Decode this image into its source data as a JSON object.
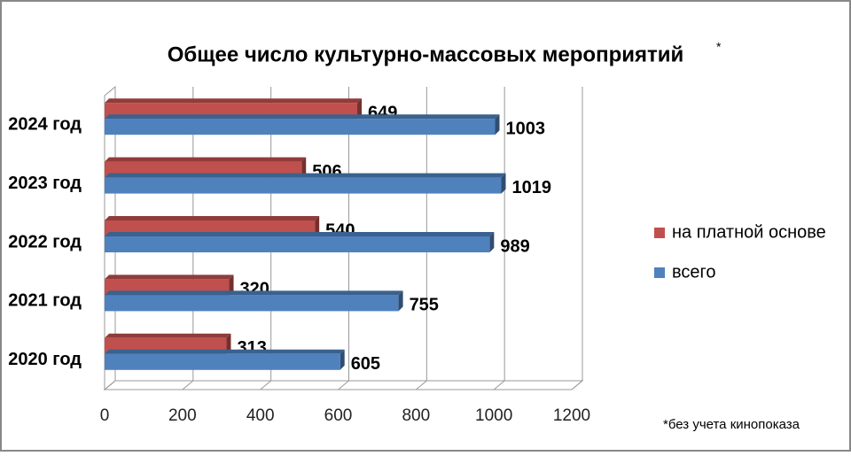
{
  "chart_data": {
    "type": "bar",
    "orientation": "horizontal",
    "title": "Общее число культурно-массовых  мероприятий",
    "title_mark": "*",
    "footnote": "*без учета кинопоказа",
    "categories": [
      "2024 год",
      "2023 год",
      "2022 год",
      "2021 год",
      "2020 год"
    ],
    "series": [
      {
        "name": "на платной основе",
        "color": "#c0504d",
        "values": [
          649,
          506,
          540,
          320,
          313
        ]
      },
      {
        "name": "всего",
        "color": "#4f81bd",
        "values": [
          1003,
          1019,
          989,
          755,
          605
        ]
      }
    ],
    "xlim": [
      0,
      1200
    ],
    "xticks": [
      0,
      200,
      400,
      600,
      800,
      1000,
      1200
    ],
    "grid": true,
    "legend": "right"
  }
}
